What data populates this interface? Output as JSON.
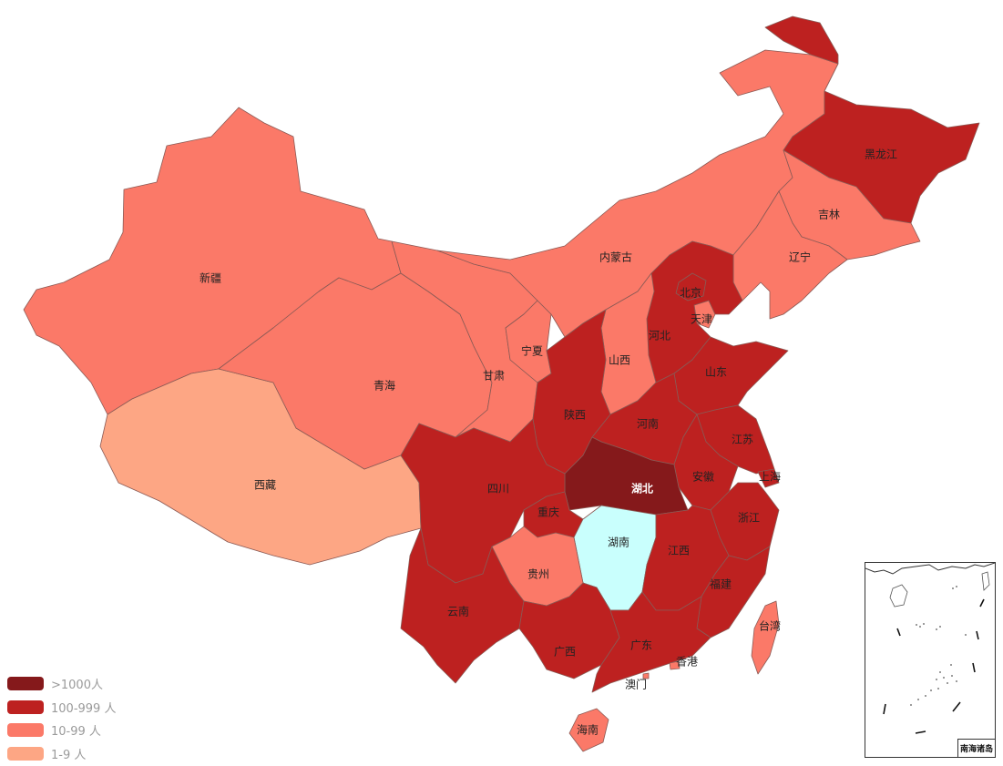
{
  "colors": {
    "over_1000": "#85191b",
    "c100_999": "#bd2120",
    "c10_99": "#fb7968",
    "c1_9": "#fda684",
    "zero": "#c9fffd"
  },
  "legend": [
    {
      "label": ">1000人",
      "color": "#85191b"
    },
    {
      "label": "100-999 人",
      "color": "#bd2120"
    },
    {
      "label": "10-99 人",
      "color": "#fb7968"
    },
    {
      "label": "1-9 人",
      "color": "#fda684"
    }
  ],
  "provinces": [
    {
      "name": "新疆",
      "level": "10-99"
    },
    {
      "name": "西藏",
      "level": "1-9"
    },
    {
      "name": "青海",
      "level": "10-99"
    },
    {
      "name": "甘肃",
      "level": "10-99"
    },
    {
      "name": "宁夏",
      "level": "10-99"
    },
    {
      "name": "内蒙古",
      "level": "10-99"
    },
    {
      "name": "黑龙江",
      "level": "100-999"
    },
    {
      "name": "吉林",
      "level": "10-99"
    },
    {
      "name": "辽宁",
      "level": "10-99"
    },
    {
      "name": "北京",
      "level": "100-999"
    },
    {
      "name": "天津",
      "level": "10-99"
    },
    {
      "name": "河北",
      "level": "100-999"
    },
    {
      "name": "山西",
      "level": "10-99"
    },
    {
      "name": "山东",
      "level": "100-999"
    },
    {
      "name": "陕西",
      "level": "100-999"
    },
    {
      "name": "河南",
      "level": "100-999"
    },
    {
      "name": "江苏",
      "level": "100-999"
    },
    {
      "name": "安徽",
      "level": "100-999"
    },
    {
      "name": "上海",
      "level": "100-999"
    },
    {
      "name": "湖北",
      "level": ">1000"
    },
    {
      "name": "四川",
      "level": "100-999"
    },
    {
      "name": "重庆",
      "level": "100-999"
    },
    {
      "name": "浙江",
      "level": "100-999"
    },
    {
      "name": "湖南",
      "level": "0"
    },
    {
      "name": "江西",
      "level": "100-999"
    },
    {
      "name": "贵州",
      "level": "10-99"
    },
    {
      "name": "福建",
      "level": "100-999"
    },
    {
      "name": "云南",
      "level": "100-999"
    },
    {
      "name": "广西",
      "level": "100-999"
    },
    {
      "name": "广东",
      "level": "100-999"
    },
    {
      "name": "台湾",
      "level": "10-99"
    },
    {
      "name": "香港",
      "level": "10-99"
    },
    {
      "name": "澳门",
      "level": "10-99"
    },
    {
      "name": "海南",
      "level": "10-99"
    }
  ],
  "inset": {
    "label": "南海诸岛"
  }
}
